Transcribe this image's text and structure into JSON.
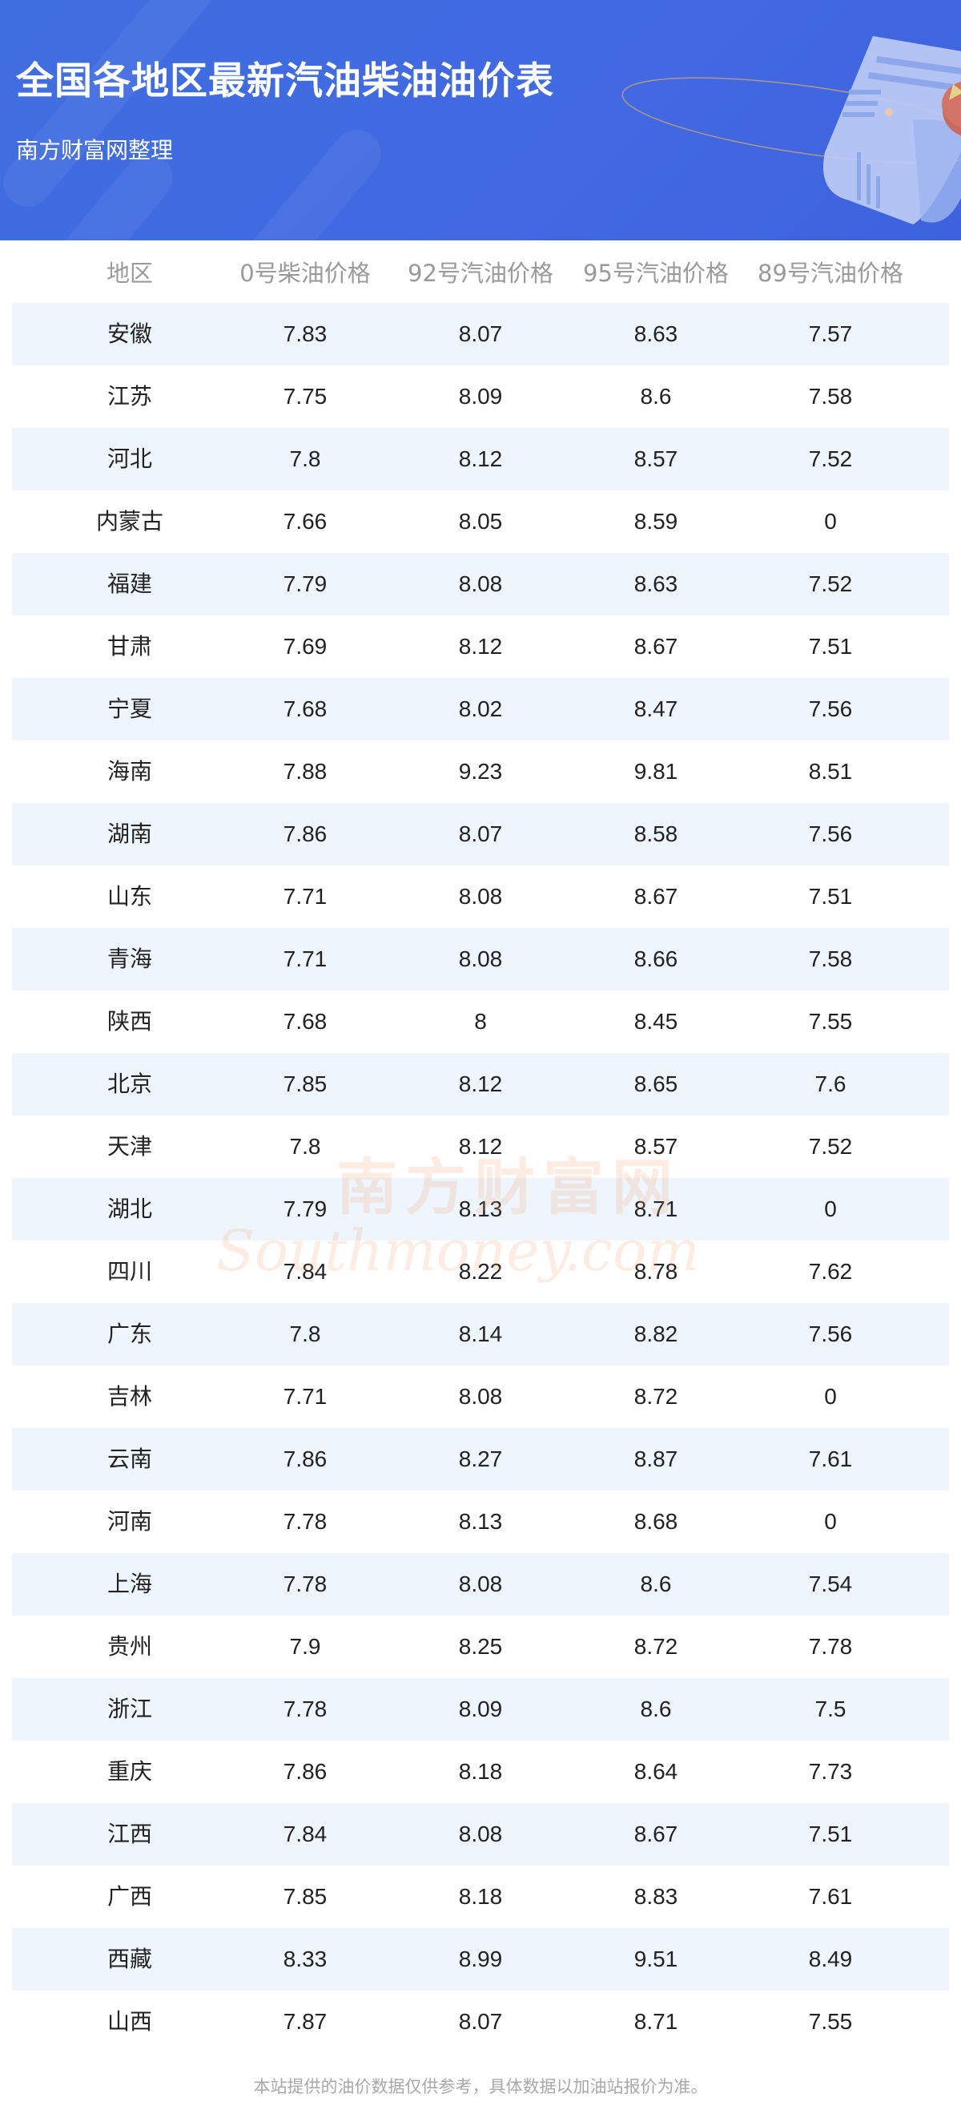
{
  "header": {
    "title": "全国各地区最新汽油柴油油价表",
    "subtitle": "南方财富网整理"
  },
  "table": {
    "columns": [
      "地区",
      "0号柴油价格",
      "92号汽油价格",
      "95号汽油价格",
      "89号汽油价格"
    ],
    "rows": [
      [
        "安徽",
        "7.83",
        "8.07",
        "8.63",
        "7.57"
      ],
      [
        "江苏",
        "7.75",
        "8.09",
        "8.6",
        "7.58"
      ],
      [
        "河北",
        "7.8",
        "8.12",
        "8.57",
        "7.52"
      ],
      [
        "内蒙古",
        "7.66",
        "8.05",
        "8.59",
        "0"
      ],
      [
        "福建",
        "7.79",
        "8.08",
        "8.63",
        "7.52"
      ],
      [
        "甘肃",
        "7.69",
        "8.12",
        "8.67",
        "7.51"
      ],
      [
        "宁夏",
        "7.68",
        "8.02",
        "8.47",
        "7.56"
      ],
      [
        "海南",
        "7.88",
        "9.23",
        "9.81",
        "8.51"
      ],
      [
        "湖南",
        "7.86",
        "8.07",
        "8.58",
        "7.56"
      ],
      [
        "山东",
        "7.71",
        "8.08",
        "8.67",
        "7.51"
      ],
      [
        "青海",
        "7.71",
        "8.08",
        "8.66",
        "7.58"
      ],
      [
        "陕西",
        "7.68",
        "8",
        "8.45",
        "7.55"
      ],
      [
        "北京",
        "7.85",
        "8.12",
        "8.65",
        "7.6"
      ],
      [
        "天津",
        "7.8",
        "8.12",
        "8.57",
        "7.52"
      ],
      [
        "湖北",
        "7.79",
        "8.13",
        "8.71",
        "0"
      ],
      [
        "四川",
        "7.84",
        "8.22",
        "8.78",
        "7.62"
      ],
      [
        "广东",
        "7.8",
        "8.14",
        "8.82",
        "7.56"
      ],
      [
        "吉林",
        "7.71",
        "8.08",
        "8.72",
        "0"
      ],
      [
        "云南",
        "7.86",
        "8.27",
        "8.87",
        "7.61"
      ],
      [
        "河南",
        "7.78",
        "8.13",
        "8.68",
        "0"
      ],
      [
        "上海",
        "7.78",
        "8.08",
        "8.6",
        "7.54"
      ],
      [
        "贵州",
        "7.9",
        "8.25",
        "8.72",
        "7.78"
      ],
      [
        "浙江",
        "7.78",
        "8.09",
        "8.6",
        "7.5"
      ],
      [
        "重庆",
        "7.86",
        "8.18",
        "8.64",
        "7.73"
      ],
      [
        "江西",
        "7.84",
        "8.08",
        "8.67",
        "7.51"
      ],
      [
        "广西",
        "7.85",
        "8.18",
        "8.83",
        "7.61"
      ],
      [
        "西藏",
        "8.33",
        "8.99",
        "9.51",
        "8.49"
      ],
      [
        "山西",
        "7.87",
        "8.07",
        "8.71",
        "7.55"
      ]
    ]
  },
  "watermark": {
    "cn": "南方财富网",
    "en": "Southmoney.com"
  },
  "footer": "本站提供的油价数据仅供参考，具体数据以加油站报价为准。",
  "colors": {
    "banner": "#4169e1",
    "stripe_row": "#eff5fd",
    "header_text": "#9a9a9a"
  }
}
